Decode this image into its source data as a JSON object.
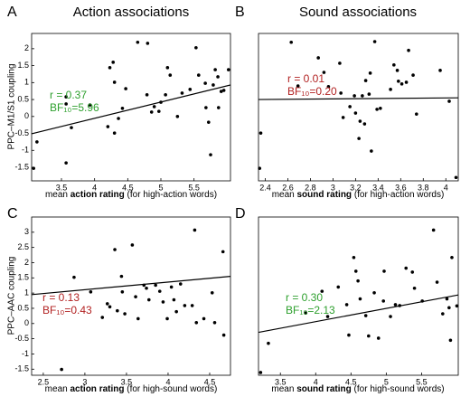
{
  "chart_data": [
    {
      "type": "scatter",
      "panel_label": "A",
      "title": "Action associations",
      "ylabel": "PPC–M1/S1 coupling",
      "xlabel": [
        "mean ",
        "action rating",
        " (for high-action words)"
      ],
      "x": [
        3.08,
        3.13,
        3.57,
        3.57,
        3.65,
        3.57,
        3.93,
        4.2,
        4.23,
        4.28,
        4.3,
        4.36,
        4.3,
        4.42,
        4.47,
        4.65,
        4.8,
        4.79,
        4.86,
        4.9,
        4.97,
        5.0,
        5.07,
        5.1,
        5.14,
        5.25,
        5.32,
        5.44,
        5.53,
        5.57,
        5.67,
        5.68,
        5.72,
        5.75,
        5.79,
        5.82,
        5.86,
        5.87,
        5.91,
        5.95,
        6.02
      ],
      "y": [
        -1.53,
        -0.75,
        0.58,
        0.37,
        -0.33,
        -1.37,
        0.34,
        -0.3,
        1.44,
        1.6,
        1.01,
        -0.06,
        -0.49,
        0.24,
        0.82,
        2.19,
        2.16,
        0.64,
        0.13,
        0.29,
        0.15,
        0.42,
        0.64,
        1.44,
        1.22,
        0.0,
        0.69,
        0.8,
        2.03,
        1.22,
        0.98,
        0.26,
        -0.17,
        -1.13,
        0.93,
        1.38,
        1.17,
        0.26,
        0.74,
        0.77,
        1.38
      ],
      "color": "#000000",
      "fit": {
        "x": [
          3.05,
          6.05
        ],
        "y": [
          -0.51,
          0.93
        ]
      },
      "annotations": [
        {
          "text": "r = 0.37",
          "color": "#2ea02e"
        },
        {
          "text": "BF₁₀=5.96",
          "color": "#2ea02e"
        }
      ],
      "xlim": [
        3.05,
        6.05
      ],
      "ylim": [
        -1.9,
        2.45
      ],
      "xticks": [
        3.5,
        4,
        4.5,
        5,
        5.5
      ],
      "yticks": [
        -1.5,
        -1,
        -0.5,
        0,
        0.5,
        1,
        1.5,
        2
      ]
    },
    {
      "type": "scatter",
      "panel_label": "B",
      "title": "Sound associations",
      "xlabel": [
        "mean ",
        "sound rating",
        " (for high-action words)"
      ],
      "x": [
        2.35,
        2.36,
        2.63,
        2.69,
        2.87,
        2.92,
        2.96,
        3.06,
        3.07,
        3.09,
        3.15,
        3.19,
        3.2,
        3.23,
        3.24,
        3.26,
        3.28,
        3.29,
        3.32,
        3.33,
        3.34,
        3.37,
        3.39,
        3.42,
        3.51,
        3.54,
        3.57,
        3.58,
        3.61,
        3.65,
        3.67,
        3.71,
        3.74,
        3.95,
        4.03,
        4.09
      ],
      "y": [
        -1.53,
        -0.49,
        2.19,
        0.9,
        1.73,
        1.3,
        0.88,
        1.57,
        0.69,
        -0.03,
        0.29,
        0.61,
        0.1,
        -0.65,
        -0.14,
        0.61,
        -0.22,
        1.06,
        0.66,
        1.28,
        -1.02,
        2.21,
        0.21,
        0.24,
        0.8,
        1.52,
        1.36,
        1.04,
        0.96,
        1.01,
        1.95,
        1.22,
        0.07,
        1.36,
        0.45,
        -1.8
      ],
      "color": "#000000",
      "fit": {
        "x": [
          2.34,
          4.11
        ],
        "y": [
          0.5,
          0.55
        ]
      },
      "annotations": [
        {
          "text": "r = 0.01",
          "color": "#b22222"
        },
        {
          "text": "BF₁₀=0.20",
          "color": "#b22222"
        }
      ],
      "xlim": [
        2.34,
        4.11
      ],
      "ylim": [
        -1.9,
        2.45
      ],
      "xticks": [
        2.4,
        2.6,
        2.8,
        3,
        3.2,
        3.4,
        3.6,
        3.8,
        4
      ]
    },
    {
      "type": "scatter",
      "panel_label": "C",
      "ylabel": "PPC–AAC coupling",
      "xlabel": [
        "mean ",
        "action rating",
        " (for high-sound words)"
      ],
      "x": [
        2.72,
        2.87,
        3.07,
        3.21,
        3.27,
        3.3,
        3.36,
        3.39,
        3.44,
        3.45,
        3.48,
        3.57,
        3.61,
        3.64,
        3.71,
        3.74,
        3.77,
        3.85,
        3.9,
        3.94,
        3.99,
        4.04,
        4.07,
        4.1,
        4.15,
        4.2,
        4.29,
        4.32,
        4.34,
        4.53,
        4.56,
        4.66,
        4.67,
        4.43
      ],
      "y": [
        -1.51,
        1.52,
        1.04,
        0.2,
        0.65,
        0.55,
        2.43,
        0.42,
        1.55,
        1.04,
        0.32,
        2.58,
        0.88,
        0.16,
        1.26,
        1.16,
        0.78,
        1.26,
        1.06,
        0.71,
        0.16,
        1.2,
        0.78,
        0.39,
        1.3,
        0.59,
        0.59,
        3.07,
        0.03,
        1.01,
        0.03,
        2.36,
        -0.38,
        0.16
      ],
      "color": "#000000",
      "fit": {
        "x": [
          2.36,
          4.75
        ],
        "y": [
          0.95,
          1.55
        ]
      },
      "annotations": [
        {
          "text": "r = 0.13",
          "color": "#b22222"
        },
        {
          "text": "BF₁₀=0.43",
          "color": "#b22222"
        }
      ],
      "xlim": [
        2.36,
        4.75
      ],
      "ylim": [
        -1.7,
        3.5
      ],
      "xticks": [
        2.5,
        3,
        3.5,
        4,
        4.5
      ],
      "yticks": [
        -1.5,
        -1,
        -0.5,
        0,
        0.5,
        1,
        1.5,
        2,
        2.5,
        3
      ]
    },
    {
      "type": "scatter",
      "panel_label": "D",
      "xlabel": [
        "mean ",
        "sound rating",
        " (for high-sound words)"
      ],
      "x": [
        3.22,
        3.33,
        3.86,
        4.09,
        4.17,
        4.32,
        4.44,
        4.47,
        4.54,
        4.57,
        4.6,
        4.63,
        4.71,
        4.75,
        4.83,
        4.89,
        4.96,
        4.97,
        5.06,
        5.13,
        5.19,
        5.28,
        5.37,
        5.4,
        5.51,
        5.67,
        5.72,
        5.8,
        5.86,
        5.89,
        5.91,
        5.93,
        6.0
      ],
      "y": [
        -1.61,
        -0.65,
        0.35,
        1.06,
        0.23,
        1.2,
        0.62,
        -0.38,
        2.17,
        1.72,
        1.4,
        0.81,
        0.26,
        -0.41,
        1.01,
        -0.48,
        0.74,
        1.72,
        0.23,
        0.62,
        0.59,
        1.82,
        1.69,
        1.16,
        0.74,
        3.07,
        1.36,
        0.32,
        0.81,
        0.52,
        -0.55,
        2.17,
        0.58
      ],
      "color": "#000000",
      "fit": {
        "x": [
          3.19,
          6.02
        ],
        "y": [
          -0.29,
          0.94
        ]
      },
      "annotations": [
        {
          "text": "r = 0.30",
          "color": "#2ea02e"
        },
        {
          "text": "BF₁₀=2.13",
          "color": "#2ea02e"
        }
      ],
      "xlim": [
        3.19,
        6.02
      ],
      "ylim": [
        -1.7,
        3.5
      ],
      "xticks": [
        3.5,
        4,
        4.5,
        5,
        5.5
      ]
    }
  ]
}
